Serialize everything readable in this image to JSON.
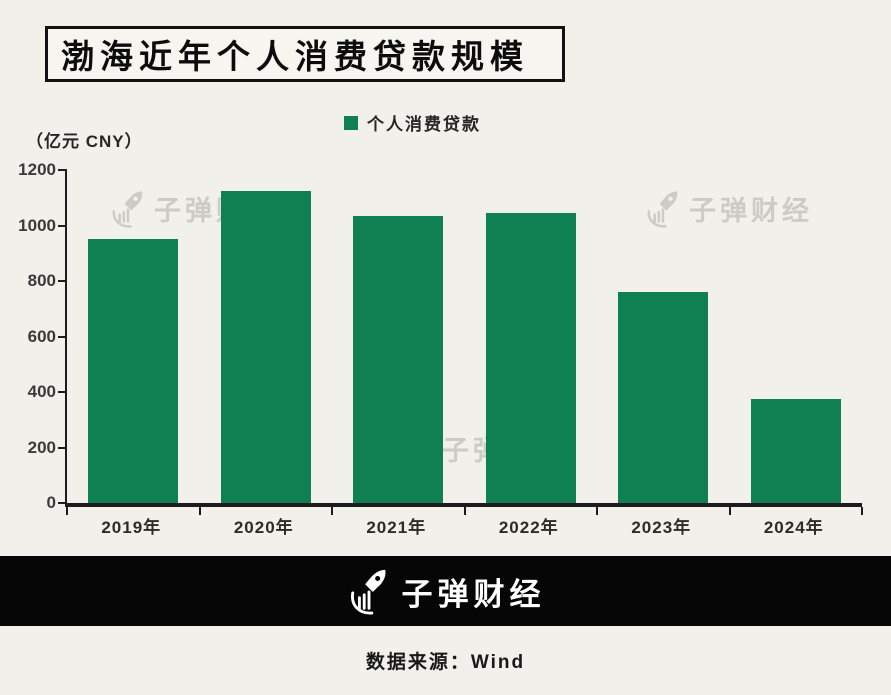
{
  "title": {
    "text": "渤海近年个人消费贷款规模"
  },
  "chart_data": {
    "type": "bar",
    "title": "渤海近年个人消费贷款规模",
    "unit_label": "（亿元 CNY）",
    "legend_label": "个人消费贷款",
    "legend_position": "top",
    "categories": [
      "2019年",
      "2020年",
      "2021年",
      "2022年",
      "2023年",
      "2024年"
    ],
    "series": [
      {
        "name": "个人消费贷款",
        "values": [
          950,
          1125,
          1035,
          1045,
          760,
          375
        ]
      }
    ],
    "ylim": [
      0,
      1200
    ],
    "yticks": [
      0,
      200,
      400,
      600,
      800,
      1000,
      1200
    ],
    "grid": false,
    "bar_color": "#0e8051",
    "axis_color": "#1c1c1c",
    "background_color": "#f1f0ea"
  },
  "watermark": {
    "text": "子弹财经"
  },
  "footer_logo": {
    "text": "子弹财经"
  },
  "source": {
    "text": "数据来源：Wind"
  },
  "colors": {
    "accent_green": "#0e8051",
    "page_background": "#f1f0ea",
    "footer_bar": "#060606",
    "watermark_gray": "#b7b6b1"
  }
}
